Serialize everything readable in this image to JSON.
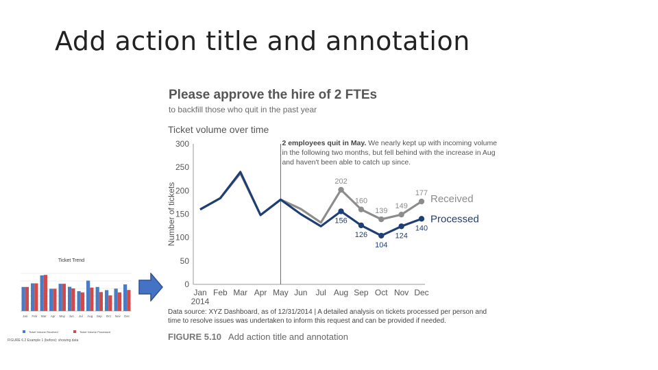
{
  "slide": {
    "title": "Add action title and annotation"
  },
  "figure": {
    "headline": "Please approve the hire of 2 FTEs",
    "subhead": "to backfill those who quit in the past year",
    "chart_title": "Ticket volume over time",
    "annotation_bold": "2 employees quit in May.",
    "annotation_rest": " We nearly kept up with incoming volume in the following two months, but fell behind with the increase in Aug and haven't been able to catch up since.",
    "source": "Data source: XYZ Dashboard, as of 12/31/2014 | A detailed analysis on tickets processed per person and time to resolve issues was undertaken to inform this request and can be provided if needed.",
    "caption_label": "FIGURE 5.10",
    "caption_text": "Add action title and annotation"
  },
  "thumbnail": {
    "title": "Ticket Trend",
    "caption": "FIGURE 6.2 Example 1 (before): showing data",
    "legend_processed": "Ticket Volume Received",
    "legend_received": "Ticket Volume Processed"
  },
  "colors": {
    "received": "#8c8c8c",
    "processed": "#1f3f73",
    "thumb_blue": "#4a7cc4",
    "thumb_red": "#cf4a4a"
  },
  "icons": [
    "right-arrow-icon"
  ],
  "chart_data": {
    "type": "line",
    "categories": [
      "Jan",
      "Feb",
      "Mar",
      "Apr",
      "May",
      "Jun",
      "Jul",
      "Aug",
      "Sep",
      "Oct",
      "Nov",
      "Dec"
    ],
    "year_label": "2014",
    "ylabel": "Number of tickets",
    "ylim": [
      0,
      300
    ],
    "yticks": [
      0,
      50,
      100,
      150,
      200,
      250,
      300
    ],
    "series": [
      {
        "name": "Received",
        "values": [
          160,
          184,
          237,
          148,
          181,
          161,
          132,
          202,
          160,
          139,
          149,
          177
        ],
        "labels_from_index": 7
      },
      {
        "name": "Processed",
        "values": [
          160,
          184,
          240,
          148,
          181,
          150,
          124,
          156,
          126,
          104,
          124,
          140
        ],
        "labels_from_index": 7
      }
    ],
    "event_marker": "May",
    "grid": false
  }
}
